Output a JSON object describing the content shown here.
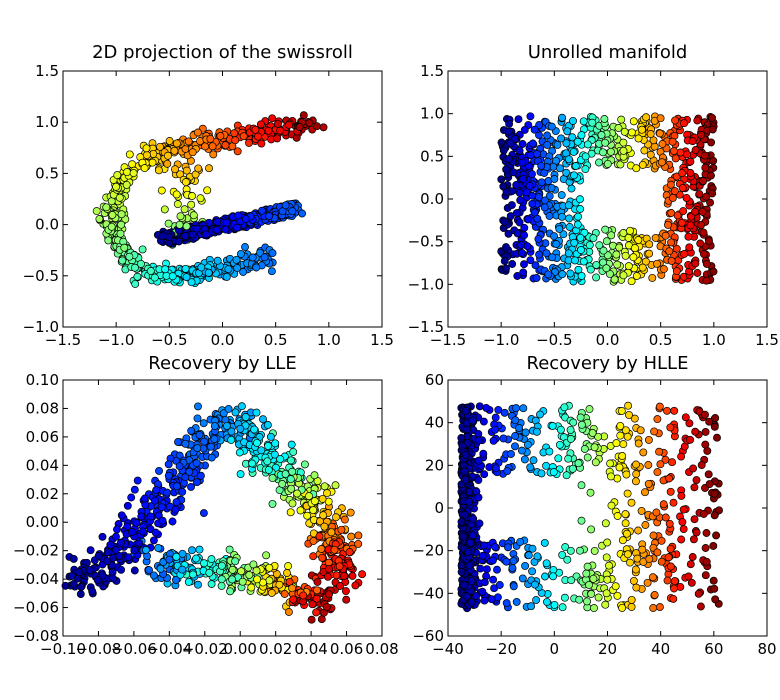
{
  "chart_data": [
    {
      "type": "scatter",
      "title": "2D projection of the swissroll",
      "xlabel": "",
      "ylabel": "",
      "xlim": [
        -1.5,
        1.5
      ],
      "ylim": [
        -1.0,
        1.5
      ],
      "xticks": [
        -1.5,
        -1.0,
        -0.5,
        0.0,
        0.5,
        1.0,
        1.5
      ],
      "yticks": [
        -1.0,
        -0.5,
        0.0,
        0.5,
        1.0,
        1.5
      ],
      "xtick_labels": [
        "−1.5",
        "−1.0",
        "−0.5",
        "0.0",
        "0.5",
        "1.0",
        "1.5"
      ],
      "ytick_labels": [
        "−1.0",
        "−0.5",
        "0.0",
        "0.5",
        "1.0",
        "1.5"
      ],
      "grid": false,
      "colormap": "jet",
      "points_approx": 1000,
      "points": [
        [
          -0.5,
          -0.12,
          0.1
        ],
        [
          -0.3,
          -0.1,
          0.05
        ],
        [
          0.0,
          -0.02,
          0.02
        ],
        [
          0.3,
          0.05,
          0.06
        ],
        [
          0.6,
          0.15,
          0.12
        ],
        [
          0.5,
          -0.3,
          0.22
        ],
        [
          0.2,
          -0.38,
          0.26
        ],
        [
          -0.1,
          -0.42,
          0.3
        ],
        [
          -0.4,
          -0.5,
          0.36
        ],
        [
          -0.7,
          -0.45,
          0.42
        ],
        [
          -1.0,
          -0.2,
          0.5
        ],
        [
          -1.05,
          0.2,
          0.55
        ],
        [
          -0.85,
          0.55,
          0.62
        ],
        [
          -0.5,
          0.72,
          0.7
        ],
        [
          -0.2,
          0.8,
          0.76
        ],
        [
          0.2,
          0.85,
          0.82
        ],
        [
          0.5,
          0.9,
          0.88
        ],
        [
          0.8,
          0.98,
          0.95
        ],
        [
          -0.25,
          0.4,
          0.64
        ],
        [
          -0.15,
          0.1,
          0.58
        ]
      ]
    },
    {
      "type": "scatter",
      "title": "Unrolled manifold",
      "xlabel": "",
      "ylabel": "",
      "xlim": [
        -1.5,
        1.5
      ],
      "ylim": [
        -1.5,
        1.5
      ],
      "xticks": [
        -1.5,
        -1.0,
        -0.5,
        0.0,
        0.5,
        1.0,
        1.5
      ],
      "yticks": [
        -1.5,
        -1.0,
        -0.5,
        0.0,
        0.5,
        1.0,
        1.5
      ],
      "xtick_labels": [
        "−1.5",
        "−1.0",
        "−0.5",
        "0.0",
        "0.5",
        "1.0",
        "1.5"
      ],
      "ytick_labels": [
        "−1.5",
        "−1.0",
        "−0.5",
        "0.0",
        "0.5",
        "1.0",
        "1.5"
      ],
      "grid": false,
      "colormap": "jet",
      "points_approx": 1000,
      "points": [
        [
          -0.95,
          0.9,
          0.02
        ],
        [
          -0.95,
          -0.9,
          0.02
        ],
        [
          -0.7,
          0.0,
          0.12
        ],
        [
          -0.4,
          0.8,
          0.25
        ],
        [
          -0.4,
          -0.8,
          0.25
        ],
        [
          -0.1,
          0.6,
          0.38
        ],
        [
          -0.1,
          -0.6,
          0.38
        ],
        [
          0.2,
          0.75,
          0.5
        ],
        [
          0.2,
          -0.75,
          0.5
        ],
        [
          0.45,
          0.3,
          0.62
        ],
        [
          0.45,
          -0.3,
          0.62
        ],
        [
          0.6,
          0.0,
          0.7
        ],
        [
          0.8,
          0.9,
          0.85
        ],
        [
          0.8,
          -0.9,
          0.85
        ],
        [
          0.95,
          0.0,
          0.98
        ]
      ]
    },
    {
      "type": "scatter",
      "title": "Recovery by LLE",
      "xlabel": "",
      "ylabel": "",
      "xlim": [
        -0.1,
        0.08
      ],
      "ylim": [
        -0.08,
        0.1
      ],
      "xticks": [
        -0.1,
        -0.08,
        -0.06,
        -0.04,
        -0.02,
        0.0,
        0.02,
        0.04,
        0.06,
        0.08
      ],
      "yticks": [
        -0.08,
        -0.06,
        -0.04,
        -0.02,
        0.0,
        0.02,
        0.04,
        0.06,
        0.08,
        0.1
      ],
      "xtick_labels": [
        "−0.10",
        "−0.08",
        "−0.06",
        "−0.04",
        "−0.02",
        "0.00",
        "0.02",
        "0.04",
        "0.06",
        "0.08"
      ],
      "ytick_labels": [
        "−0.08",
        "−0.06",
        "−0.04",
        "−0.02",
        "0.00",
        "0.02",
        "0.04",
        "0.06",
        "0.08",
        "0.10"
      ],
      "grid": false,
      "colormap": "jet",
      "points_approx": 1000,
      "points": [
        [
          -0.09,
          -0.045,
          0.02
        ],
        [
          -0.06,
          -0.02,
          0.08
        ],
        [
          -0.04,
          0.02,
          0.15
        ],
        [
          -0.02,
          0.06,
          0.22
        ],
        [
          -0.005,
          0.075,
          0.28
        ],
        [
          0.01,
          0.05,
          0.35
        ],
        [
          0.025,
          0.03,
          0.45
        ],
        [
          0.04,
          0.01,
          0.6
        ],
        [
          0.05,
          -0.01,
          0.75
        ],
        [
          0.06,
          -0.04,
          0.9
        ],
        [
          0.04,
          -0.05,
          0.95
        ],
        [
          0.02,
          -0.04,
          0.68
        ],
        [
          0.0,
          -0.035,
          0.52
        ],
        [
          -0.02,
          -0.03,
          0.4
        ],
        [
          -0.045,
          -0.03,
          0.22
        ]
      ]
    },
    {
      "type": "scatter",
      "title": "Recovery by HLLE",
      "xlabel": "",
      "ylabel": "",
      "xlim": [
        -40,
        80
      ],
      "ylim": [
        -60,
        60
      ],
      "xticks": [
        -40,
        -20,
        0,
        20,
        40,
        60,
        80
      ],
      "yticks": [
        -60,
        -40,
        -20,
        0,
        20,
        40,
        60
      ],
      "xtick_labels": [
        "−40",
        "−20",
        "0",
        "20",
        "40",
        "60",
        "80"
      ],
      "ytick_labels": [
        "−60",
        "−40",
        "−20",
        "0",
        "20",
        "40",
        "60"
      ],
      "grid": false,
      "colormap": "jet",
      "points_approx": 1000,
      "points": [
        [
          -35,
          45,
          0.02
        ],
        [
          -35,
          -45,
          0.02
        ],
        [
          -33,
          0,
          0.05
        ],
        [
          -25,
          40,
          0.2
        ],
        [
          -25,
          -40,
          0.2
        ],
        [
          -10,
          30,
          0.38
        ],
        [
          -10,
          -30,
          0.38
        ],
        [
          5,
          25,
          0.52
        ],
        [
          5,
          -25,
          0.52
        ],
        [
          20,
          10,
          0.62
        ],
        [
          20,
          -10,
          0.62
        ],
        [
          35,
          40,
          0.78
        ],
        [
          35,
          -40,
          0.78
        ],
        [
          55,
          0,
          0.95
        ]
      ]
    }
  ]
}
